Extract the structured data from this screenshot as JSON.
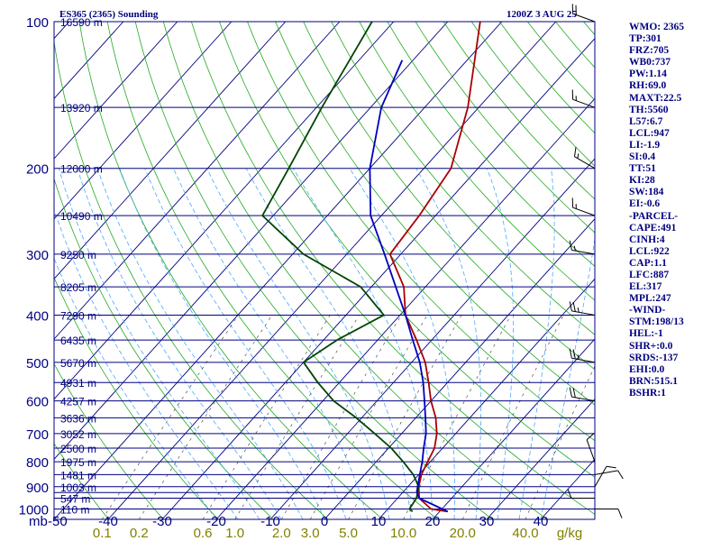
{
  "header": {
    "station_title": "ES365 (2365) Sounding",
    "valid_time": "1200Z  3 AUG 25"
  },
  "indices": [
    "WMO: 2365",
    "TP:301",
    "FRZ:705",
    "WB0:737",
    "PW:1.14",
    "RH:69.0",
    "MAXT:22.5",
    "TH:5560",
    "L57:6.7",
    "LCL:947",
    "LI:-1.9",
    "SI:0.4",
    "TT:51",
    "KI:28",
    "SW:184",
    "EI:-0.6",
    "-PARCEL-",
    "CAPE:491",
    "CINH:4",
    "LCL:922",
    "CAP:1.1",
    "LFC:887",
    "EL:317",
    "MPL:247",
    "-WIND-",
    "STM:198/13",
    "HEL:-1",
    "SHR+:0.0",
    "SRDS:-137",
    "EHI:0.0",
    "BRN:515.1",
    "BSHR:1"
  ],
  "colors": {
    "frame": "#000080",
    "isobar": "#000080",
    "isotherm": "#000080",
    "dry_adiabat": "#22aa22",
    "moist_adiabat": "#4aa8ff",
    "mixing_ratio": "#333333",
    "temperature": "#aa0000",
    "dewpoint": "#004400",
    "parcel": "#0000bb",
    "wind_barb": "#000000",
    "mixing_ratio_label": "#808000"
  },
  "chart_data": {
    "type": "line",
    "title": "",
    "xlabel": "",
    "ylabel": "mb",
    "xlim": [
      -50,
      50
    ],
    "ylim": [
      1050,
      100
    ],
    "y_scale": "log",
    "pressure_labels": [
      "100",
      "200",
      "300",
      "400",
      "500",
      "600",
      "700",
      "800",
      "900",
      "1000"
    ],
    "pressure_levels": [
      100,
      200,
      300,
      400,
      500,
      600,
      700,
      800,
      900,
      1000
    ],
    "isobar_levels": [
      100,
      150,
      200,
      250,
      300,
      350,
      400,
      450,
      500,
      550,
      600,
      650,
      700,
      750,
      800,
      850,
      900,
      925,
      950,
      1000
    ],
    "temperature_ticks": [
      -40,
      -30,
      -20,
      -10,
      0,
      10,
      20,
      30,
      40
    ],
    "temperature_tick_labels": [
      "-40",
      "-30",
      "-20",
      "-10",
      "0",
      "10",
      "20",
      "30",
      "40"
    ],
    "left_corner_label": "mb",
    "left_x_label": "-50",
    "mixing_ratio_unit": "g/kg",
    "mixing_ratio_labels": [
      "0.1",
      "0.2",
      "0.6",
      "1.0",
      "2.0",
      "3.0",
      "5.0",
      "10.0",
      "20.0",
      "40.0"
    ],
    "mixing_ratio_values": [
      0.1,
      0.2,
      0.6,
      1.0,
      2.0,
      3.0,
      5.0,
      10.0,
      20.0,
      40.0
    ],
    "height_labels": [
      {
        "text": "16590 m",
        "p": 100
      },
      {
        "text": "13920 m",
        "p": 150
      },
      {
        "text": "12000 m",
        "p": 200
      },
      {
        "text": "10490 m",
        "p": 250
      },
      {
        "text": "9250 m",
        "p": 300
      },
      {
        "text": "8205 m",
        "p": 350
      },
      {
        "text": "7290 m",
        "p": 400
      },
      {
        "text": "6435 m",
        "p": 450
      },
      {
        "text": "5670 m",
        "p": 500
      },
      {
        "text": "4931 m",
        "p": 550
      },
      {
        "text": "4257 m",
        "p": 600
      },
      {
        "text": "3636 m",
        "p": 650
      },
      {
        "text": "3052 m",
        "p": 700
      },
      {
        "text": "2500 m",
        "p": 750
      },
      {
        "text": "1975 m",
        "p": 800
      },
      {
        "text": "1481 m",
        "p": 850
      },
      {
        "text": "1003 m",
        "p": 900
      },
      {
        "text": "547 m",
        "p": 950
      },
      {
        "text": "110 m",
        "p": 1000
      }
    ],
    "series": [
      {
        "key": "temperature",
        "points": [
          [
            1012,
            21.5
          ],
          [
            1000,
            18
          ],
          [
            950,
            14
          ],
          [
            900,
            12
          ],
          [
            850,
            10.5
          ],
          [
            800,
            9.5
          ],
          [
            750,
            8.5
          ],
          [
            700,
            6.5
          ],
          [
            650,
            3.7
          ],
          [
            600,
            0
          ],
          [
            550,
            -3.5
          ],
          [
            500,
            -7.5
          ],
          [
            450,
            -12.8
          ],
          [
            400,
            -19
          ],
          [
            350,
            -24
          ],
          [
            300,
            -32
          ],
          [
            250,
            -33
          ],
          [
            200,
            -35
          ],
          [
            150,
            -42
          ],
          [
            100,
            -54
          ]
        ]
      },
      {
        "key": "dewpoint",
        "points": [
          [
            1012,
            15
          ],
          [
            1000,
            14
          ],
          [
            950,
            13.5
          ],
          [
            900,
            12
          ],
          [
            850,
            9
          ],
          [
            800,
            5
          ],
          [
            750,
            0.5
          ],
          [
            700,
            -5
          ],
          [
            650,
            -11
          ],
          [
            600,
            -18
          ],
          [
            550,
            -24
          ],
          [
            500,
            -30
          ],
          [
            450,
            -27.5
          ],
          [
            400,
            -23
          ],
          [
            350,
            -32
          ],
          [
            300,
            -48
          ],
          [
            250,
            -62
          ],
          [
            200,
            -65
          ],
          [
            150,
            -69
          ],
          [
            100,
            -74
          ]
        ]
      },
      {
        "key": "parcel",
        "points": [
          [
            1012,
            21.5
          ],
          [
            950,
            14
          ],
          [
            922,
            12.5
          ],
          [
            900,
            11.8
          ],
          [
            850,
            10.2
          ],
          [
            800,
            8.5
          ],
          [
            750,
            6.5
          ],
          [
            700,
            4.5
          ],
          [
            650,
            1.8
          ],
          [
            600,
            -1.2
          ],
          [
            550,
            -4.5
          ],
          [
            500,
            -8.5
          ],
          [
            450,
            -13.5
          ],
          [
            400,
            -19
          ],
          [
            350,
            -25.5
          ],
          [
            300,
            -33
          ],
          [
            250,
            -42
          ],
          [
            200,
            -50
          ],
          [
            150,
            -58
          ],
          [
            120,
            -62
          ]
        ]
      }
    ],
    "wind_barbs": [
      {
        "p": 100,
        "dir": 290,
        "spd": 20
      },
      {
        "p": 150,
        "dir": 290,
        "spd": 15
      },
      {
        "p": 200,
        "dir": 300,
        "spd": 15
      },
      {
        "p": 250,
        "dir": 290,
        "spd": 15
      },
      {
        "p": 300,
        "dir": 280,
        "spd": 15
      },
      {
        "p": 400,
        "dir": 280,
        "spd": 25
      },
      {
        "p": 500,
        "dir": 280,
        "spd": 25
      },
      {
        "p": 600,
        "dir": 280,
        "spd": 20
      },
      {
        "p": 800,
        "dir": 340,
        "spd": 10
      },
      {
        "p": 850,
        "dir": 80,
        "spd": 10
      },
      {
        "p": 900,
        "dir": 30,
        "spd": 10
      },
      {
        "p": 950,
        "dir": 270,
        "spd": 10
      },
      {
        "p": 1000,
        "dir": 90,
        "spd": 10
      }
    ],
    "grid": true
  }
}
